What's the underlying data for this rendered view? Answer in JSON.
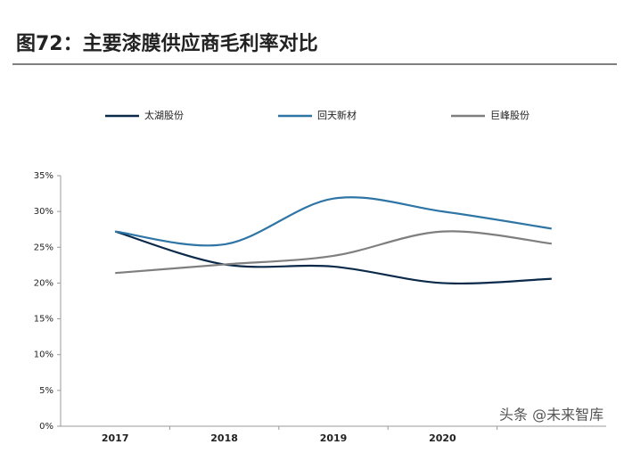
{
  "chart_data": {
    "type": "line",
    "title": "图72：主要漆膜供应商毛利率对比",
    "categories": [
      "2017",
      "2018",
      "2019",
      "2020",
      null
    ],
    "series": [
      {
        "name": "太湖股份",
        "color": "#0b2a4a",
        "values": [
          27.2,
          22.6,
          22.3,
          20.0,
          20.6
        ]
      },
      {
        "name": "回天新材",
        "color": "#2e75a6",
        "values": [
          27.2,
          25.4,
          31.8,
          30.0,
          27.6
        ]
      },
      {
        "name": "巨峰股份",
        "color": "#7f7f7f",
        "values": [
          21.4,
          22.6,
          23.8,
          27.2,
          25.5
        ]
      }
    ],
    "ylim": [
      0,
      35
    ],
    "yticks": [
      {
        "value": 0,
        "label": "0%"
      },
      {
        "value": 5,
        "label": "5%"
      },
      {
        "value": 10,
        "label": "10%"
      },
      {
        "value": 15,
        "label": "15%"
      },
      {
        "value": 20,
        "label": "20%"
      },
      {
        "value": 25,
        "label": "25%"
      },
      {
        "value": 30,
        "label": "30%"
      },
      {
        "value": 35,
        "label": "35%"
      }
    ],
    "smooth": true,
    "legend": "top",
    "watermark": "头条 @未来智库"
  }
}
